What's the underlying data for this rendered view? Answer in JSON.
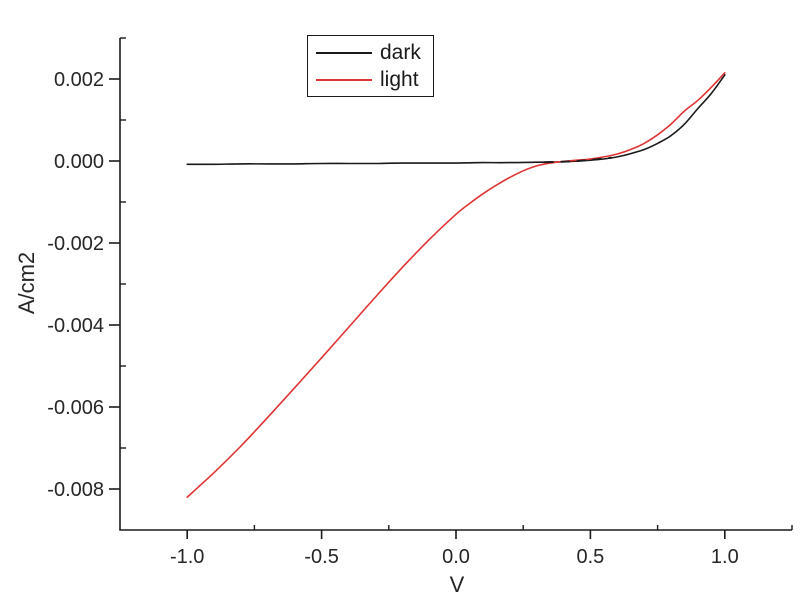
{
  "colors": {
    "background": "#ffffff",
    "axis": "#1a1a1a",
    "text": "#262626",
    "dark_series": "#1a1a1a",
    "light_series": "#e03333"
  },
  "chart_data": {
    "type": "line",
    "title": "",
    "xlabel": "V",
    "ylabel": "A/cm2",
    "xlim": [
      -1.25,
      1.25
    ],
    "ylim": [
      -0.009,
      0.003
    ],
    "grid": false,
    "x_major_ticks": [
      -1.0,
      -0.5,
      0.0,
      0.5,
      1.0
    ],
    "x_tick_labels": [
      "-1.0",
      "-0.5",
      "0.0",
      "0.5",
      "1.0"
    ],
    "x_minor_ticks": [
      -0.75,
      -0.25,
      0.25,
      0.75,
      1.25
    ],
    "y_major_ticks": [
      0.002,
      0.0,
      -0.002,
      -0.004,
      -0.006,
      -0.008
    ],
    "y_tick_labels": [
      "0.002",
      "0.000",
      "-0.002",
      "-0.004",
      "-0.006",
      "-0.008"
    ],
    "y_minor_ticks": [
      0.001,
      -0.001,
      -0.003,
      -0.005,
      -0.007
    ],
    "legend": {
      "position": "top-center",
      "entries": [
        {
          "label": "dark",
          "color": "#1a1a1a"
        },
        {
          "label": "light",
          "color": "#e03333"
        }
      ]
    },
    "series": [
      {
        "name": "dark",
        "color": "#1a1a1a",
        "x": [
          -1.0,
          -0.9,
          -0.8,
          -0.7,
          -0.6,
          -0.5,
          -0.4,
          -0.3,
          -0.2,
          -0.1,
          0.0,
          0.1,
          0.2,
          0.3,
          0.4,
          0.5,
          0.55,
          0.6,
          0.65,
          0.7,
          0.75,
          0.8,
          0.85,
          0.9,
          0.95,
          1.0
        ],
        "y": [
          -8e-05,
          -8e-05,
          -7e-05,
          -7e-05,
          -7e-05,
          -6e-05,
          -6e-05,
          -6e-05,
          -5e-05,
          -5e-05,
          -5e-05,
          -4e-05,
          -4e-05,
          -3e-05,
          -2e-05,
          2e-05,
          5e-05,
          0.0001,
          0.00018,
          0.00028,
          0.00043,
          0.00062,
          0.0009,
          0.00128,
          0.00165,
          0.0021
        ]
      },
      {
        "name": "light",
        "color": "#e03333",
        "x": [
          -1.0,
          -0.9,
          -0.8,
          -0.7,
          -0.6,
          -0.5,
          -0.4,
          -0.3,
          -0.2,
          -0.1,
          0.0,
          0.05,
          0.1,
          0.15,
          0.2,
          0.25,
          0.3,
          0.35,
          0.4,
          0.45,
          0.5,
          0.55,
          0.6,
          0.65,
          0.7,
          0.75,
          0.8,
          0.85,
          0.9,
          0.95,
          1.0
        ],
        "y": [
          -0.0082,
          -0.0076,
          -0.00695,
          -0.00625,
          -0.00553,
          -0.0048,
          -0.00406,
          -0.00332,
          -0.0026,
          -0.00192,
          -0.0013,
          -0.00104,
          -0.0008,
          -0.00059,
          -0.0004,
          -0.00024,
          -0.00012,
          -5e-05,
          -1e-05,
          2e-05,
          5e-05,
          0.0001,
          0.00017,
          0.00028,
          0.00043,
          0.00064,
          0.0009,
          0.00122,
          0.00148,
          0.0018,
          0.00215
        ]
      }
    ],
    "overlap_dashes": {
      "comment_visual": "dark dashes visible over light curve where both lie at ~0",
      "x": [
        0.33,
        0.45,
        0.58
      ],
      "y": [
        -3e-05,
        0.0,
        8e-05
      ],
      "dash": [
        9,
        7
      ]
    }
  }
}
